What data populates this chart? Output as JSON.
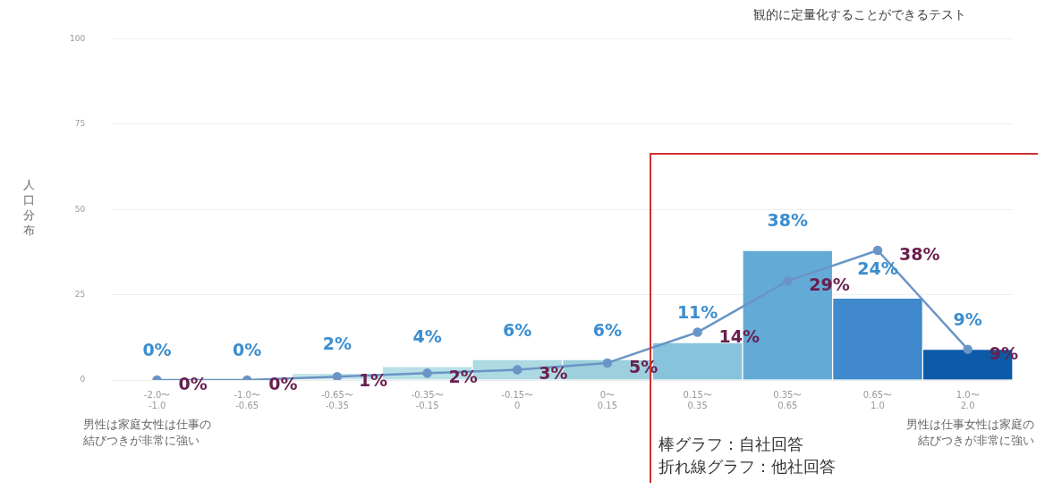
{
  "chart_data": {
    "type": "bar",
    "ylabel": "人口分布",
    "categories": [
      "-2.0〜\n-1.0",
      "-1.0〜\n-0.65",
      "-0.65〜\n-0.35",
      "-0.35〜\n-0.15",
      "-0.15〜\n0",
      "0〜\n0.15",
      "0.15〜\n0.35",
      "0.35〜\n0.65",
      "0.65〜\n1.0",
      "1.0〜\n2.0"
    ],
    "ylim": [
      0,
      100
    ],
    "yticks": [
      0,
      25,
      50,
      75,
      100
    ],
    "grid": "y",
    "marker": "circle",
    "series": [
      {
        "colors": [
          "#d9eff1",
          "#d2ecef",
          "#c6e6ea",
          "#b9e0e6",
          "#acd9e2",
          "#9dd0dd",
          "#87c4dc",
          "#63aad6",
          "#3f89cc",
          "#0c5aa8"
        ],
        "values": [
          0,
          0,
          2,
          4,
          6,
          6,
          11,
          38,
          24,
          9
        ],
        "value_labels": [
          "0%",
          "0%",
          "2%",
          "4%",
          "6%",
          "6%",
          "11%",
          "38%",
          "24%",
          "9%"
        ]
      },
      {
        "type": "line",
        "color": "#6a95c6",
        "values": [
          0,
          0,
          1,
          2,
          3,
          5,
          14,
          29,
          38,
          9
        ],
        "value_labels": [
          "0%",
          "0%",
          "1%",
          "2%",
          "3%",
          "5%",
          "14%",
          "29%",
          "38%",
          "9%"
        ]
      }
    ],
    "annotations": [
      "観的に定量化することができるテスト",
      "男性は家庭女性は仕事の結びつきが非常に強い",
      "男性は仕事女性は家庭の結びつきが非常に強い",
      "棒グラフ：自社回答",
      "折れ線グラフ：他社回答"
    ]
  }
}
